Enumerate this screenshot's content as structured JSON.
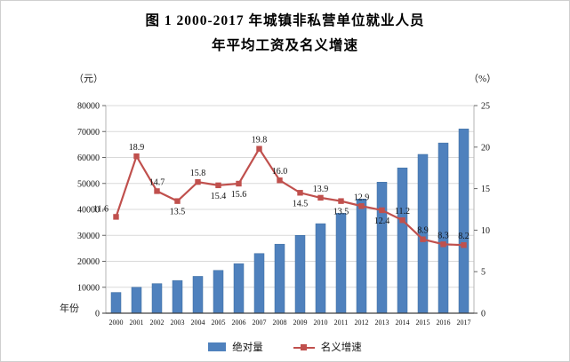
{
  "title": {
    "line1": "图 1  2000-2017 年城镇非私营单位就业人员",
    "line2": "年平均工资及名义增速"
  },
  "axes": {
    "left_unit": "（元）",
    "right_unit": "（%）",
    "x_label": "年份"
  },
  "legend": {
    "items": [
      {
        "label": "绝对量"
      },
      {
        "label": "名义增速"
      }
    ]
  },
  "colors": {
    "bar": "#4f81bd",
    "bar_border": "#3a6a9e",
    "line": "#c0504d",
    "grid": "#d9d9d9",
    "axis": "#404040",
    "tick": "#666666",
    "side_axis": "#b5b5b5"
  },
  "chart_data": {
    "type": "combo-bar-line",
    "title": "图 1 2000-2017 年城镇非私营单位就业人员年平均工资及名义增速",
    "categories": [
      "2000",
      "2001",
      "2002",
      "2003",
      "2004",
      "2005",
      "2006",
      "2007",
      "2008",
      "2009",
      "2010",
      "2011",
      "2012",
      "2013",
      "2014",
      "2015",
      "2016",
      "2017"
    ],
    "series": [
      {
        "name": "绝对量",
        "type": "bar",
        "axis": "left",
        "unit": "元",
        "values": [
          8000,
          10000,
          11400,
          12600,
          14200,
          16500,
          19100,
          23000,
          26600,
          30000,
          34500,
          38500,
          44000,
          50500,
          56000,
          61200,
          65600,
          71000
        ]
      },
      {
        "name": "名义增速",
        "type": "line",
        "axis": "right",
        "unit": "%",
        "values": [
          11.6,
          18.9,
          14.7,
          13.5,
          15.8,
          15.4,
          15.6,
          19.8,
          16.0,
          14.5,
          13.9,
          13.5,
          12.9,
          12.4,
          11.2,
          8.9,
          8.3,
          8.2
        ],
        "labels": [
          "11.6",
          "18.9",
          "14.7",
          "13.5",
          "15.8",
          "15.4",
          "15.6",
          "19.8",
          "16.0",
          "14.5",
          "13.9",
          "13.5",
          "12.9",
          "12.4",
          "11.2",
          "8.9",
          "8.3",
          "8.2"
        ],
        "label_positions": [
          "above-left",
          "above",
          "above",
          "below",
          "above",
          "below",
          "below",
          "above",
          "above",
          "below",
          "above",
          "below",
          "above",
          "below",
          "above",
          "above",
          "above",
          "above"
        ]
      }
    ],
    "left_axis": {
      "min": 0,
      "max": 80000,
      "tick_step": 10000,
      "ticks": [
        "0",
        "10000",
        "20000",
        "30000",
        "40000",
        "50000",
        "60000",
        "70000",
        "80000"
      ]
    },
    "right_axis": {
      "min": 0,
      "max": 25,
      "tick_step": 5,
      "ticks": [
        "0",
        "5",
        "10",
        "15",
        "20",
        "25"
      ]
    },
    "grid": "horizontal",
    "legend_position": "bottom",
    "xlabel": "年份",
    "ylabel_left": "元",
    "ylabel_right": "%"
  }
}
